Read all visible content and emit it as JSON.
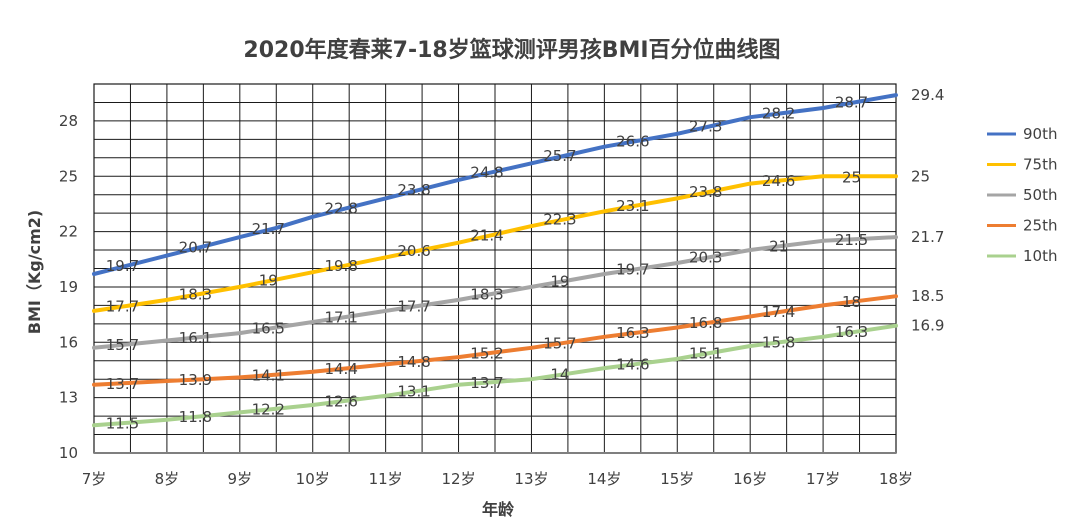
{
  "chart_data": {
    "type": "line",
    "title": "2020年度春莱7-18岁篮球测评男孩BMI百分位曲线图",
    "xlabel": "年龄",
    "ylabel": "BMI（Kg/cm2)",
    "x_tick_labels": [
      "7岁",
      "8岁",
      "9岁",
      "10岁",
      "11岁",
      "12岁",
      "13岁",
      "14岁",
      "15岁",
      "16岁",
      "17岁",
      "18岁"
    ],
    "x_range": [
      7,
      18
    ],
    "ylim": [
      10,
      30
    ],
    "y_ticks": [
      10,
      13,
      16,
      19,
      22,
      25,
      28
    ],
    "grid": true,
    "legend_position": "right",
    "series": [
      {
        "name": "90th",
        "color": "#4472C4",
        "x": [
          7,
          7.5,
          8,
          8.5,
          9,
          9.5,
          10,
          10.5,
          11,
          11.5,
          12,
          12.5,
          13,
          13.5,
          14,
          14.5,
          15,
          15.5,
          16,
          16.5,
          17,
          17.5,
          18
        ],
        "y": [
          19.7,
          20.2,
          20.7,
          21.2,
          21.7,
          22.2,
          22.8,
          23.3,
          23.8,
          24.3,
          24.8,
          25.25,
          25.7,
          26.15,
          26.6,
          26.95,
          27.3,
          27.75,
          28.2,
          28.45,
          28.7,
          29.05,
          29.4
        ],
        "labels": [
          {
            "x": 7.5,
            "text": "19.7"
          },
          {
            "x": 8.5,
            "text": "20.7"
          },
          {
            "x": 9.5,
            "text": "21.7"
          },
          {
            "x": 10.5,
            "text": "22.8"
          },
          {
            "x": 11.5,
            "text": "23.8"
          },
          {
            "x": 12.5,
            "text": "24.8"
          },
          {
            "x": 13.5,
            "text": "25.7"
          },
          {
            "x": 14.5,
            "text": "26.6"
          },
          {
            "x": 15.5,
            "text": "27.3"
          },
          {
            "x": 16.5,
            "text": "28.2"
          },
          {
            "x": 17.5,
            "text": "28.7"
          }
        ],
        "end_label": "29.4"
      },
      {
        "name": "75th",
        "color": "#FFC000",
        "x": [
          7,
          7.5,
          8,
          8.5,
          9,
          9.5,
          10,
          10.5,
          11,
          11.5,
          12,
          12.5,
          13,
          13.5,
          14,
          14.5,
          15,
          15.5,
          16,
          16.5,
          17,
          17.5,
          18
        ],
        "y": [
          17.7,
          18.0,
          18.3,
          18.65,
          19.0,
          19.4,
          19.8,
          20.2,
          20.6,
          21.0,
          21.4,
          21.85,
          22.3,
          22.7,
          23.1,
          23.45,
          23.8,
          24.2,
          24.6,
          24.8,
          25.0,
          25.0,
          25.0
        ],
        "labels": [
          {
            "x": 7.5,
            "text": "17.7"
          },
          {
            "x": 8.5,
            "text": "18.3"
          },
          {
            "x": 9.5,
            "text": "19"
          },
          {
            "x": 10.5,
            "text": "19.8"
          },
          {
            "x": 11.5,
            "text": "20.6"
          },
          {
            "x": 12.5,
            "text": "21.4"
          },
          {
            "x": 13.5,
            "text": "22.3"
          },
          {
            "x": 14.5,
            "text": "23.1"
          },
          {
            "x": 15.5,
            "text": "23.8"
          },
          {
            "x": 16.5,
            "text": "24.6"
          },
          {
            "x": 17.5,
            "text": "25"
          }
        ],
        "end_label": "25"
      },
      {
        "name": "50th",
        "color": "#A5A5A5",
        "x": [
          7,
          7.5,
          8,
          8.5,
          9,
          9.5,
          10,
          10.5,
          11,
          11.5,
          12,
          12.5,
          13,
          13.5,
          14,
          14.5,
          15,
          15.5,
          16,
          16.5,
          17,
          17.5,
          18
        ],
        "y": [
          15.7,
          15.9,
          16.1,
          16.3,
          16.5,
          16.8,
          17.1,
          17.4,
          17.7,
          18.0,
          18.3,
          18.65,
          19.0,
          19.35,
          19.7,
          20.0,
          20.3,
          20.65,
          21.0,
          21.25,
          21.5,
          21.6,
          21.7
        ],
        "labels": [
          {
            "x": 7.5,
            "text": "15.7"
          },
          {
            "x": 8.5,
            "text": "16.1"
          },
          {
            "x": 9.5,
            "text": "16.5"
          },
          {
            "x": 10.5,
            "text": "17.1"
          },
          {
            "x": 11.5,
            "text": "17.7"
          },
          {
            "x": 12.5,
            "text": "18.3"
          },
          {
            "x": 13.5,
            "text": "19"
          },
          {
            "x": 14.5,
            "text": "19.7"
          },
          {
            "x": 15.5,
            "text": "20.3"
          },
          {
            "x": 16.5,
            "text": "21"
          },
          {
            "x": 17.5,
            "text": "21.5"
          }
        ],
        "end_label": "21.7"
      },
      {
        "name": "25th",
        "color": "#ED7D31",
        "x": [
          7,
          7.5,
          8,
          8.5,
          9,
          9.5,
          10,
          10.5,
          11,
          11.5,
          12,
          12.5,
          13,
          13.5,
          14,
          14.5,
          15,
          15.5,
          16,
          16.5,
          17,
          17.5,
          18
        ],
        "y": [
          13.7,
          13.8,
          13.9,
          14.0,
          14.1,
          14.25,
          14.4,
          14.6,
          14.8,
          15.0,
          15.2,
          15.45,
          15.7,
          16.0,
          16.3,
          16.55,
          16.8,
          17.1,
          17.4,
          17.7,
          18.0,
          18.25,
          18.5
        ],
        "labels": [
          {
            "x": 7.5,
            "text": "13.7"
          },
          {
            "x": 8.5,
            "text": "13.9"
          },
          {
            "x": 9.5,
            "text": "14.1"
          },
          {
            "x": 10.5,
            "text": "14.4"
          },
          {
            "x": 11.5,
            "text": "14.8"
          },
          {
            "x": 12.5,
            "text": "15.2"
          },
          {
            "x": 13.5,
            "text": "15.7"
          },
          {
            "x": 14.5,
            "text": "16.3"
          },
          {
            "x": 15.5,
            "text": "16.8"
          },
          {
            "x": 16.5,
            "text": "17.4"
          },
          {
            "x": 17.5,
            "text": "18"
          }
        ],
        "end_label": "18.5"
      },
      {
        "name": "10th",
        "color": "#A9D18E",
        "x": [
          7,
          7.5,
          8,
          8.5,
          9,
          9.5,
          10,
          10.5,
          11,
          11.5,
          12,
          12.5,
          13,
          13.5,
          14,
          14.5,
          15,
          15.5,
          16,
          16.5,
          17,
          17.5,
          18
        ],
        "y": [
          11.5,
          11.65,
          11.8,
          12.0,
          12.2,
          12.4,
          12.6,
          12.85,
          13.1,
          13.4,
          13.7,
          13.85,
          14.0,
          14.3,
          14.6,
          14.85,
          15.1,
          15.45,
          15.8,
          16.05,
          16.3,
          16.6,
          16.9
        ],
        "labels": [
          {
            "x": 7.5,
            "text": "11.5"
          },
          {
            "x": 8.5,
            "text": "11.8"
          },
          {
            "x": 9.5,
            "text": "12.2"
          },
          {
            "x": 10.5,
            "text": "12.6"
          },
          {
            "x": 11.5,
            "text": "13.1"
          },
          {
            "x": 12.5,
            "text": "13.7"
          },
          {
            "x": 13.5,
            "text": "14"
          },
          {
            "x": 14.5,
            "text": "14.6"
          },
          {
            "x": 15.5,
            "text": "15.1"
          },
          {
            "x": 16.5,
            "text": "15.8"
          },
          {
            "x": 17.5,
            "text": "16.3"
          }
        ],
        "end_label": "16.9"
      }
    ]
  }
}
